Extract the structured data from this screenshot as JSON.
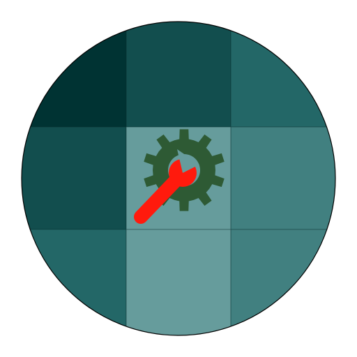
{
  "icon": {
    "name": "settings-wrench-gear-icon",
    "grid_colors": [
      [
        "#003333",
        "#124e4e",
        "#236767"
      ],
      [
        "#124e4e",
        "#669c9c",
        "#418080"
      ],
      [
        "#236767",
        "#669c9c",
        "#418080"
      ]
    ],
    "gear_color": "#2e5a34",
    "wrench_color": "#ff1a0d",
    "outline_color": "#000000"
  }
}
